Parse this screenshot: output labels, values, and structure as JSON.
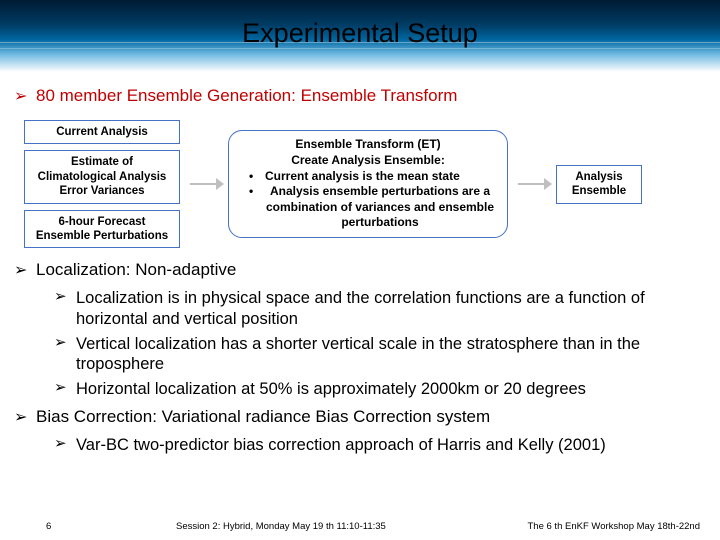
{
  "colors": {
    "accent_border": "#4472c4",
    "red_text": "#c00000",
    "arrow": "#bfbfbf"
  },
  "title": "Experimental Setup",
  "bullet1": "80 member Ensemble Generation: Ensemble Transform",
  "flow": {
    "left": {
      "b1": "Current Analysis",
      "b2": "Estimate of Climatological Analysis Error Variances",
      "b3": "6-hour Forecast Ensemble Perturbations"
    },
    "et": {
      "t1": "Ensemble Transform (ET)",
      "t2": "Create Analysis Ensemble:",
      "li1": "Current analysis is the mean state",
      "li2": "Analysis ensemble perturbations are a combination of variances and ensemble perturbations"
    },
    "right": "Analysis Ensemble"
  },
  "bullet2": "Localization: Non-adaptive",
  "sub1": "Localization is in physical space and the correlation functions are a function of horizontal and vertical position",
  "sub2": "Vertical localization has a shorter vertical scale in the stratosphere than in the troposphere",
  "sub3": "Horizontal localization at 50% is approximately 2000km or 20 degrees",
  "bullet3": "Bias Correction: Variational radiance Bias Correction system",
  "sub4": "Var-BC two-predictor bias correction approach of Harris and Kelly (2001)",
  "footer": {
    "page": "6",
    "session": "Session 2: Hybrid, Monday May 19 th 11:10-11:35",
    "workshop": "The 6 th EnKF Workshop May 18th-22nd"
  }
}
